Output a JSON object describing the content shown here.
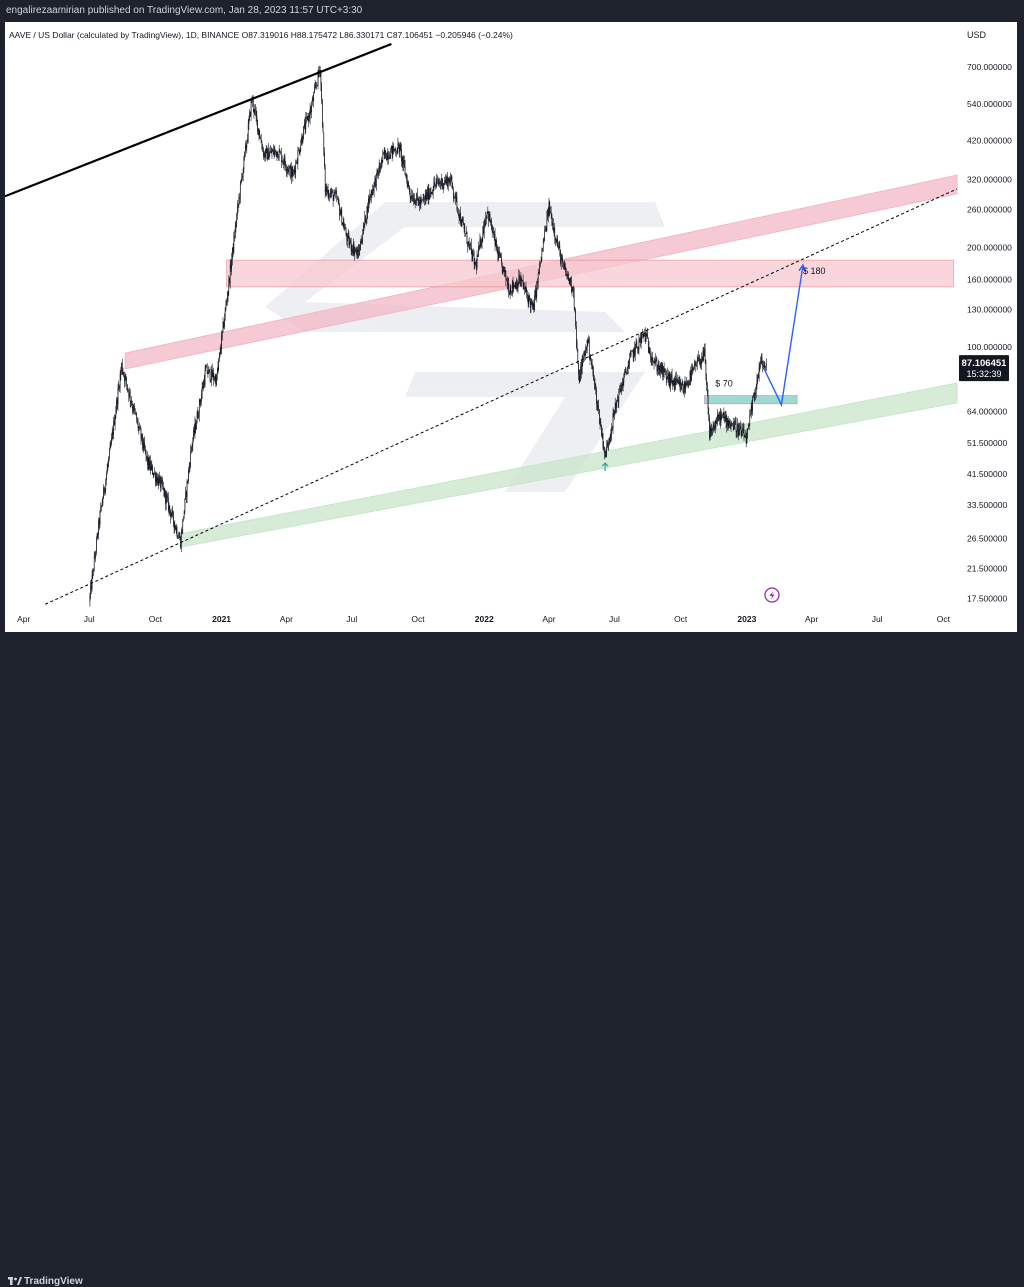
{
  "header": {
    "published_text": "engalirezaamirian published on TradingView.com, Jan 28, 2023 11:57 UTC+3:30"
  },
  "footer": {
    "brand": "TradingView"
  },
  "chart_data": {
    "type": "candlestick",
    "legend_text": "AAVE / US Dollar (calculated by TradingView), 1D, BINANCE  O87.319016  H88.175472  L86.330171  C87.106451  −0.205946 (−0.24%)",
    "currency": "USD",
    "y_scale": "log",
    "y_range": [
      15.7,
      820
    ],
    "y_ticks": [
      {
        "value": 700,
        "label": "700.000000"
      },
      {
        "value": 540,
        "label": "540.000000"
      },
      {
        "value": 420,
        "label": "420.000000"
      },
      {
        "value": 320,
        "label": "320.000000"
      },
      {
        "value": 260,
        "label": "260.000000"
      },
      {
        "value": 200,
        "label": "200.000000"
      },
      {
        "value": 160,
        "label": "160.000000"
      },
      {
        "value": 130,
        "label": "130.000000"
      },
      {
        "value": 100,
        "label": "100.000000"
      },
      {
        "value": 64,
        "label": "64.000000"
      },
      {
        "value": 51.5,
        "label": "51.500000"
      },
      {
        "value": 41.5,
        "label": "41.500000"
      },
      {
        "value": 33.5,
        "label": "33.500000"
      },
      {
        "value": 26.5,
        "label": "26.500000"
      },
      {
        "value": 21.5,
        "label": "21.500000"
      },
      {
        "value": 17.5,
        "label": "17.500000"
      }
    ],
    "x_range": [
      "2020-03-06",
      "2023-10-20"
    ],
    "x_ticks": [
      {
        "date": "2020-04-01",
        "label": "Apr"
      },
      {
        "date": "2020-07-01",
        "label": "Jul"
      },
      {
        "date": "2020-10-01",
        "label": "Oct"
      },
      {
        "date": "2021-01-01",
        "label": "2021"
      },
      {
        "date": "2021-04-01",
        "label": "Apr"
      },
      {
        "date": "2021-07-01",
        "label": "Jul"
      },
      {
        "date": "2021-10-01",
        "label": "Oct"
      },
      {
        "date": "2022-01-01",
        "label": "2022"
      },
      {
        "date": "2022-04-01",
        "label": "Apr"
      },
      {
        "date": "2022-07-01",
        "label": "Jul"
      },
      {
        "date": "2022-10-01",
        "label": "Oct"
      },
      {
        "date": "2023-01-01",
        "label": "2023"
      },
      {
        "date": "2023-04-01",
        "label": "Apr"
      },
      {
        "date": "2023-07-01",
        "label": "Jul"
      },
      {
        "date": "2023-10-01",
        "label": "Oct"
      }
    ],
    "price_path": [
      [
        "2020-07-01",
        17.0
      ],
      [
        "2020-07-15",
        30.0
      ],
      [
        "2020-08-01",
        52.0
      ],
      [
        "2020-08-15",
        88.0
      ],
      [
        "2020-09-05",
        60.0
      ],
      [
        "2020-09-20",
        45.0
      ],
      [
        "2020-10-10",
        38.0
      ],
      [
        "2020-11-05",
        26.0
      ],
      [
        "2020-11-20",
        50.0
      ],
      [
        "2020-12-10",
        85.0
      ],
      [
        "2020-12-25",
        80.0
      ],
      [
        "2021-01-10",
        150.0
      ],
      [
        "2021-01-25",
        280.0
      ],
      [
        "2021-02-05",
        420.0
      ],
      [
        "2021-02-12",
        560.0
      ],
      [
        "2021-03-01",
        380.0
      ],
      [
        "2021-03-20",
        390.0
      ],
      [
        "2021-04-10",
        330.0
      ],
      [
        "2021-04-25",
        450.0
      ],
      [
        "2021-05-05",
        520.0
      ],
      [
        "2021-05-18",
        700.0
      ],
      [
        "2021-05-25",
        300.0
      ],
      [
        "2021-06-10",
        280.0
      ],
      [
        "2021-06-25",
        210.0
      ],
      [
        "2021-07-10",
        190.0
      ],
      [
        "2021-07-25",
        280.0
      ],
      [
        "2021-08-15",
        380.0
      ],
      [
        "2021-09-05",
        400.0
      ],
      [
        "2021-09-20",
        290.0
      ],
      [
        "2021-10-05",
        270.0
      ],
      [
        "2021-10-25",
        310.0
      ],
      [
        "2021-11-15",
        320.0
      ],
      [
        "2021-11-30",
        240.0
      ],
      [
        "2021-12-20",
        175.0
      ],
      [
        "2022-01-05",
        260.0
      ],
      [
        "2022-01-20",
        190.0
      ],
      [
        "2022-02-05",
        150.0
      ],
      [
        "2022-02-20",
        160.0
      ],
      [
        "2022-03-10",
        130.0
      ],
      [
        "2022-04-01",
        265.0
      ],
      [
        "2022-04-20",
        175.0
      ],
      [
        "2022-05-05",
        150.0
      ],
      [
        "2022-05-12",
        80.0
      ],
      [
        "2022-05-25",
        105.0
      ],
      [
        "2022-06-18",
        47.0
      ],
      [
        "2022-07-05",
        70.0
      ],
      [
        "2022-07-25",
        95.0
      ],
      [
        "2022-08-12",
        110.0
      ],
      [
        "2022-08-25",
        90.0
      ],
      [
        "2022-09-15",
        80.0
      ],
      [
        "2022-10-05",
        75.0
      ],
      [
        "2022-10-25",
        90.0
      ],
      [
        "2022-11-03",
        95.0
      ],
      [
        "2022-11-10",
        55.0
      ],
      [
        "2022-11-25",
        62.0
      ],
      [
        "2022-12-15",
        58.0
      ],
      [
        "2023-01-01",
        53.0
      ],
      [
        "2023-01-10",
        70.0
      ],
      [
        "2023-01-20",
        90.0
      ],
      [
        "2023-01-28",
        87.1
      ]
    ],
    "last_price": {
      "label": "87.106451",
      "countdown": "15:32:39",
      "value": 87.106451
    },
    "annotations": [
      {
        "type": "line",
        "color": "#000000",
        "points": [
          [
            "2020-03-06",
            285
          ],
          [
            "2021-08-25",
            820
          ]
        ]
      },
      {
        "type": "channel",
        "color": "#f2b8c6",
        "lower": [
          [
            "2020-08-20",
            86
          ],
          [
            "2023-10-20",
            290
          ]
        ],
        "upper": [
          [
            "2020-08-20",
            96
          ],
          [
            "2023-10-20",
            330
          ]
        ]
      },
      {
        "type": "zone",
        "color": "#f5c8cf",
        "from": "2021-01-08",
        "to": "2023-10-15",
        "low": 152,
        "high": 183
      },
      {
        "type": "channel",
        "color": "#c8e6c9",
        "lower": [
          [
            "2020-11-05",
            25.0
          ],
          [
            "2023-10-20",
            68.0
          ]
        ],
        "upper": [
          [
            "2020-11-05",
            27.4
          ],
          [
            "2023-10-20",
            78.0
          ]
        ]
      },
      {
        "type": "zone",
        "color": "#80cbc4",
        "from": "2022-11-03",
        "to": "2023-03-12",
        "low": 67.5,
        "high": 71.5
      },
      {
        "type": "dotted-line",
        "color": "#000000",
        "points": [
          [
            "2020-05-01",
            16.8
          ],
          [
            "2023-10-20",
            300
          ]
        ]
      },
      {
        "type": "arrow",
        "color": "#2962ff",
        "points": [
          [
            "2023-01-25",
            86
          ],
          [
            "2023-02-18",
            67
          ],
          [
            "2023-03-20",
            177
          ]
        ]
      },
      {
        "type": "label",
        "text": "$ 180",
        "at": [
          "2023-03-20",
          166
        ]
      },
      {
        "type": "label",
        "text": "$ 70",
        "at": [
          "2022-11-18",
          76
        ]
      },
      {
        "type": "up-arrow-mark",
        "color": "#26a69a",
        "at": [
          "2022-06-18",
          43.5
        ]
      }
    ]
  }
}
